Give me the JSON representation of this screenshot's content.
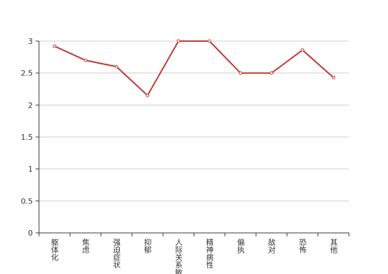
{
  "chart_data": {
    "type": "line",
    "categories": [
      "躯体化",
      "焦虑",
      "强迫症状",
      "抑郁",
      "人际关系敏感",
      "精神病性",
      "偏执",
      "敌对",
      "恐怖",
      "其他"
    ],
    "series": [
      {
        "color": "#c23531",
        "values": [
          2.92,
          2.7,
          2.6,
          2.15,
          3,
          3,
          2.5,
          2.5,
          2.86,
          2.43
        ]
      }
    ],
    "ylim": [
      0,
      3
    ],
    "yticks": [
      0,
      0.5,
      1,
      1.5,
      2,
      2.5,
      3
    ],
    "grid": true
  }
}
